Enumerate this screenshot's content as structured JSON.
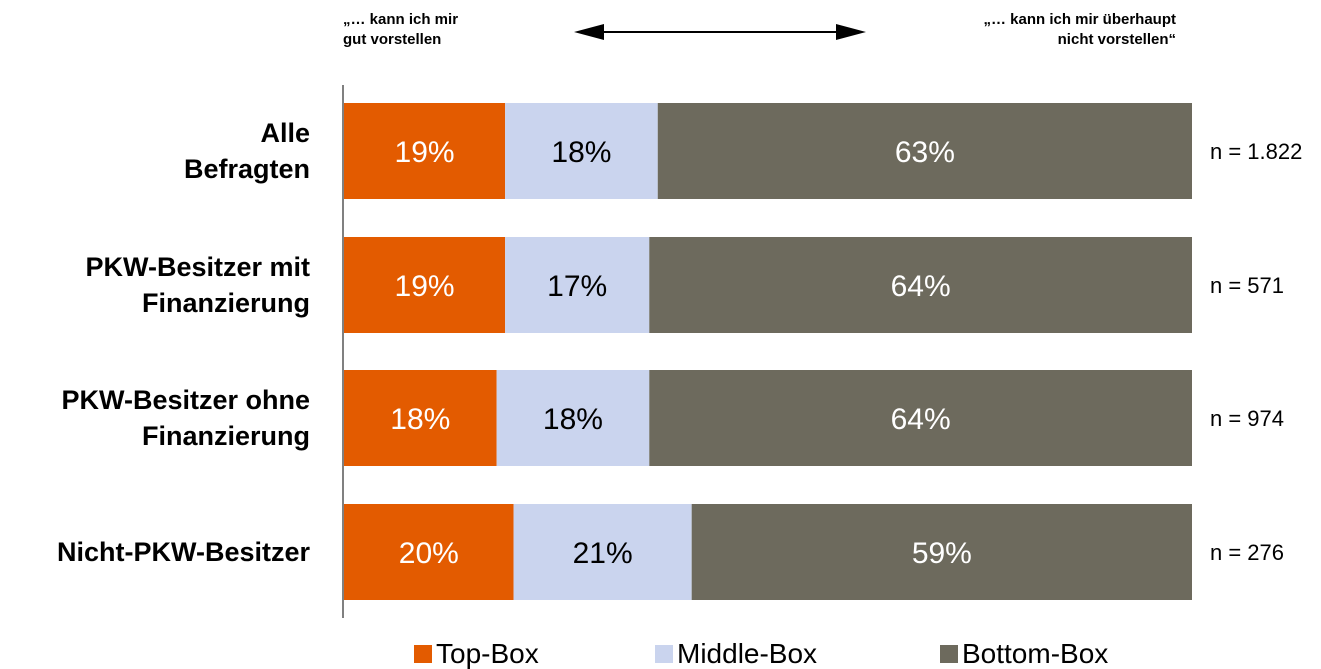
{
  "header": {
    "left": "„… kann ich mir\ngut vorstellen",
    "right": "„… kann ich mir überhaupt\nnicht vorstellen“"
  },
  "chart_data": {
    "type": "bar",
    "orientation": "horizontal",
    "stacked": true,
    "categories": [
      [
        "Alle",
        "Befragten"
      ],
      [
        "PKW-Besitzer mit",
        "Finanzierung"
      ],
      [
        "PKW-Besitzer ohne",
        "Finanzierung"
      ],
      [
        "Nicht-PKW-Besitzer"
      ]
    ],
    "series": [
      {
        "name": "Top-Box",
        "color": "#E35B00",
        "values": [
          19,
          19,
          18,
          20
        ],
        "labels": [
          "19%",
          "19%",
          "18%",
          "20%"
        ]
      },
      {
        "name": "Middle-Box",
        "color": "#CAD4EE",
        "values": [
          18,
          17,
          18,
          21
        ],
        "labels": [
          "18%",
          "17%",
          "18%",
          "21%"
        ]
      },
      {
        "name": "Bottom-Box",
        "color": "#6D6A5D",
        "values": [
          63,
          64,
          64,
          59
        ],
        "labels": [
          "63%",
          "64%",
          "64%",
          "59%"
        ]
      }
    ],
    "sample_sizes": [
      "n = 1.822",
      "n = 571",
      "n = 974",
      "n = 276"
    ],
    "xlim": [
      0,
      100
    ],
    "grid": false,
    "legend_position": "bottom"
  }
}
